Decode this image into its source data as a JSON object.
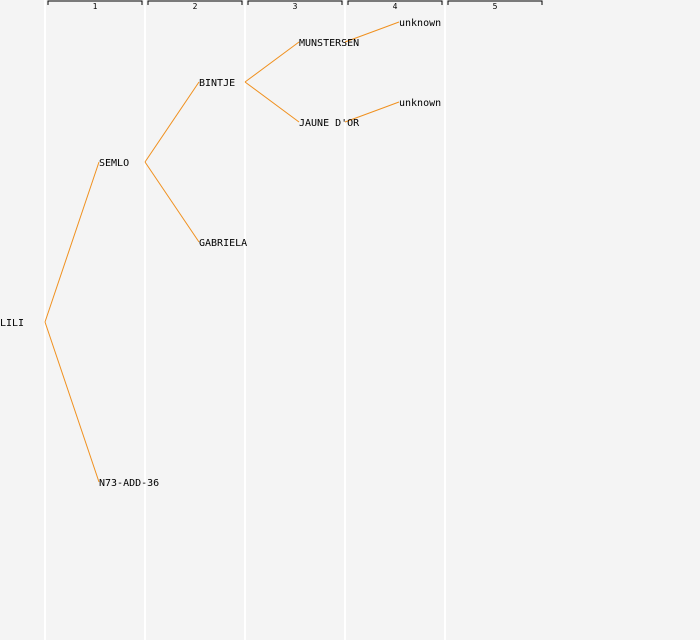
{
  "generations": [
    "1",
    "2",
    "3",
    "4",
    "5"
  ],
  "colors": {
    "background": "#f4f4f4",
    "separator": "#ffffff",
    "edge": "#f0901e",
    "text": "#000000"
  },
  "tree": {
    "name": "LILI",
    "children": [
      {
        "name": "SEMLO",
        "children": [
          {
            "name": "BINTJE",
            "children": [
              {
                "name": "MUNSTERSEN",
                "children": [
                  {
                    "name": "unknown"
                  }
                ]
              },
              {
                "name": "JAUNE D'OR",
                "children": [
                  {
                    "name": "unknown"
                  }
                ]
              }
            ]
          },
          {
            "name": "GABRIELA"
          }
        ]
      },
      {
        "name": "N73-ADD-36"
      }
    ]
  }
}
